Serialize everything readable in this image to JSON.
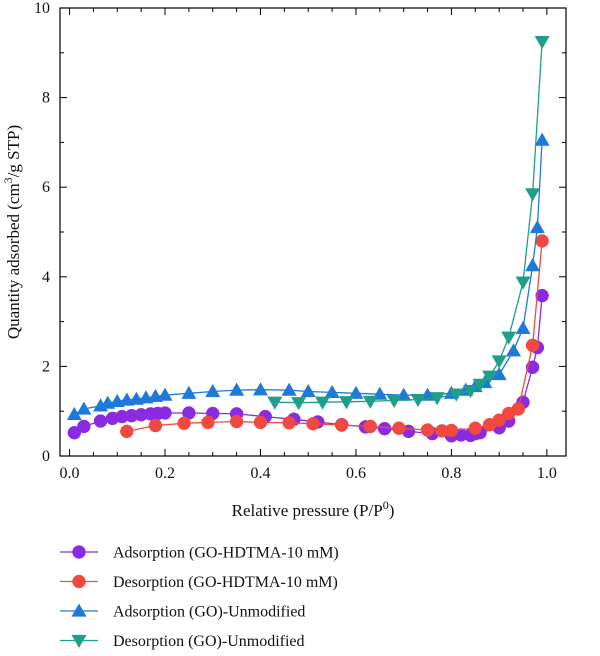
{
  "chart_data": {
    "type": "line",
    "xlabel": "Relative pressure (P/P",
    "xlabel_sup": "0",
    "xlabel_end": ")",
    "ylabel_pre": "Quantity adsorbed (cm",
    "ylabel_sup": "3",
    "ylabel_post": "/g STP)",
    "xlim": [
      -0.02,
      1.04
    ],
    "ylim": [
      0,
      10
    ],
    "xticks": [
      0.0,
      0.2,
      0.4,
      0.6,
      0.8,
      1.0
    ],
    "xtick_labels": [
      "0.0",
      "0.2",
      "0.4",
      "0.6",
      "0.8",
      "1.0"
    ],
    "yticks": [
      0,
      2,
      4,
      6,
      8,
      10
    ],
    "ytick_labels": [
      "0",
      "2",
      "4",
      "6",
      "8",
      "10"
    ],
    "legend_position": "below",
    "series": [
      {
        "name": "Adsorption (GO-HDTMA-10 mM)",
        "color": "#8a2be2",
        "marker": "circle",
        "x": [
          0.01,
          0.03,
          0.065,
          0.09,
          0.11,
          0.13,
          0.15,
          0.17,
          0.185,
          0.2,
          0.25,
          0.3,
          0.35,
          0.41,
          0.47,
          0.52,
          0.57,
          0.62,
          0.66,
          0.71,
          0.76,
          0.8,
          0.82,
          0.84,
          0.85,
          0.86,
          0.9,
          0.92,
          0.95,
          0.97,
          0.98,
          0.99
        ],
        "y": [
          0.52,
          0.66,
          0.78,
          0.84,
          0.88,
          0.9,
          0.92,
          0.94,
          0.95,
          0.96,
          0.96,
          0.95,
          0.94,
          0.88,
          0.82,
          0.76,
          0.7,
          0.65,
          0.61,
          0.55,
          0.5,
          0.45,
          0.47,
          0.46,
          0.5,
          0.52,
          0.63,
          0.78,
          1.2,
          1.98,
          2.42,
          3.58
        ]
      },
      {
        "name": "Desorption (GO-HDTMA-10 mM)",
        "color": "#f04a40",
        "marker": "circle",
        "x": [
          0.12,
          0.18,
          0.24,
          0.29,
          0.35,
          0.4,
          0.46,
          0.51,
          0.57,
          0.63,
          0.69,
          0.75,
          0.78,
          0.8,
          0.85,
          0.88,
          0.9,
          0.92,
          0.94,
          0.97,
          0.99
        ],
        "y": [
          0.55,
          0.68,
          0.73,
          0.75,
          0.77,
          0.75,
          0.74,
          0.72,
          0.69,
          0.66,
          0.62,
          0.58,
          0.56,
          0.57,
          0.62,
          0.7,
          0.8,
          0.95,
          1.05,
          2.47,
          4.8
        ]
      },
      {
        "name": "Adsorption (GO)-Unmodified",
        "color": "#1e7ad8",
        "marker": "triangle-up",
        "x": [
          0.01,
          0.03,
          0.065,
          0.08,
          0.1,
          0.12,
          0.14,
          0.16,
          0.18,
          0.2,
          0.25,
          0.3,
          0.35,
          0.4,
          0.46,
          0.5,
          0.55,
          0.6,
          0.65,
          0.7,
          0.75,
          0.8,
          0.83,
          0.85,
          0.87,
          0.9,
          0.93,
          0.95,
          0.97,
          0.98,
          0.99
        ],
        "y": [
          0.93,
          1.05,
          1.12,
          1.18,
          1.22,
          1.25,
          1.27,
          1.3,
          1.33,
          1.36,
          1.4,
          1.44,
          1.47,
          1.48,
          1.47,
          1.44,
          1.42,
          1.4,
          1.38,
          1.36,
          1.36,
          1.4,
          1.47,
          1.55,
          1.64,
          1.82,
          2.35,
          2.85,
          4.25,
          5.1,
          7.05
        ]
      },
      {
        "name": "Desorption (GO)-Unmodified",
        "color": "#1f9e8a",
        "marker": "triangle-down",
        "x": [
          0.43,
          0.48,
          0.53,
          0.58,
          0.63,
          0.68,
          0.73,
          0.77,
          0.81,
          0.84,
          0.86,
          0.88,
          0.9,
          0.92,
          0.95,
          0.97,
          0.99
        ],
        "y": [
          1.2,
          1.19,
          1.2,
          1.21,
          1.22,
          1.24,
          1.26,
          1.3,
          1.38,
          1.46,
          1.6,
          1.78,
          2.12,
          2.65,
          3.88,
          5.85,
          9.25
        ]
      }
    ]
  }
}
